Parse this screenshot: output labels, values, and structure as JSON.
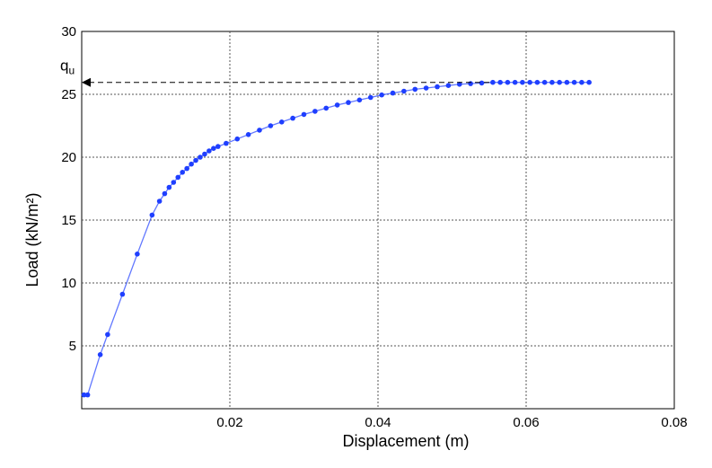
{
  "chart_data": {
    "type": "line",
    "xlabel": "Displacement (m)",
    "ylabel": "Load (kN/m²)",
    "xlim": [
      0,
      0.08
    ],
    "ylim": [
      0,
      30
    ],
    "x_ticks": [
      "0.02",
      "0.04",
      "0.06",
      "0.08"
    ],
    "y_ticks": [
      "5",
      "10",
      "15",
      "20",
      "25",
      "30"
    ],
    "grid": true,
    "series": [
      {
        "color": "#1f3fff",
        "x": [
          0.0003,
          0.0008,
          0.0025,
          0.0035,
          0.0055,
          0.0075,
          0.0095,
          0.0105,
          0.0112,
          0.0118,
          0.0124,
          0.013,
          0.0136,
          0.0142,
          0.0148,
          0.0154,
          0.016,
          0.0166,
          0.0172,
          0.0178,
          0.0184,
          0.0195,
          0.021,
          0.0225,
          0.024,
          0.0255,
          0.027,
          0.0285,
          0.03,
          0.0315,
          0.033,
          0.0345,
          0.036,
          0.0375,
          0.039,
          0.0405,
          0.042,
          0.0435,
          0.045,
          0.0465,
          0.048,
          0.0495,
          0.051,
          0.0525,
          0.054,
          0.0555,
          0.0565,
          0.0575,
          0.0585,
          0.0595,
          0.0605,
          0.0615,
          0.0625,
          0.0635,
          0.0645,
          0.0655,
          0.0665,
          0.0675,
          0.0685
        ],
        "y": [
          1.1,
          1.1,
          4.3,
          5.9,
          9.1,
          12.3,
          15.4,
          16.5,
          17.1,
          17.6,
          18.0,
          18.4,
          18.8,
          19.1,
          19.45,
          19.75,
          20.0,
          20.25,
          20.5,
          20.7,
          20.85,
          21.1,
          21.45,
          21.8,
          22.15,
          22.5,
          22.8,
          23.1,
          23.4,
          23.65,
          23.9,
          24.15,
          24.35,
          24.55,
          24.75,
          24.95,
          25.1,
          25.25,
          25.4,
          25.5,
          25.6,
          25.7,
          25.8,
          25.85,
          25.9,
          25.95,
          25.95,
          25.95,
          25.95,
          25.95,
          25.95,
          25.95,
          25.95,
          25.95,
          25.95,
          25.95,
          25.95,
          25.95,
          25.95
        ]
      }
    ],
    "annotation": {
      "label_main": "q",
      "label_sub": "u",
      "y": 25.95
    }
  }
}
